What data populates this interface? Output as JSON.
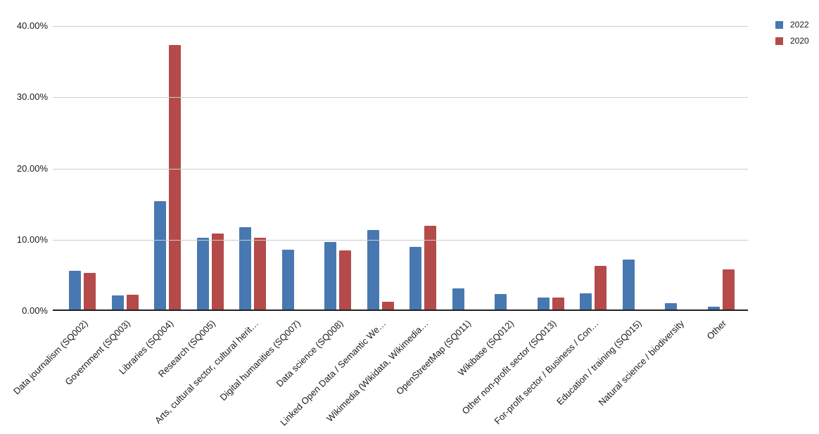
{
  "chart_data": {
    "type": "bar",
    "categories": [
      "Data journalism (SQ002)",
      "Government (SQ003)",
      "Libraries (SQ004)",
      "Research (SQ005)",
      "Arts, cultural sector, cultural herit…",
      "Digital humanities (SQ007)",
      "Data science (SQ008)",
      "Linked Open Data / Semantic We…",
      "Wikimedia (Wikidata, Wikimedia…",
      "OpenStreetMap (SQ011)",
      "Wikibase (SQ012)",
      "Other non-profit sector (SQ013)",
      "For-profit sector / Business / Con…",
      "Education / training (SQ015)",
      "Natural science / biodiversity",
      "Other"
    ],
    "series": [
      {
        "name": "2022",
        "color": "#4878B1",
        "values": [
          5.4,
          2.0,
          15.2,
          10.1,
          11.6,
          8.4,
          9.5,
          11.2,
          8.8,
          3.0,
          2.2,
          1.7,
          2.3,
          7.0,
          0.9,
          0.4
        ]
      },
      {
        "name": "2020",
        "color": "#B54A4A",
        "values": [
          5.1,
          2.1,
          37.1,
          10.7,
          10.1,
          0,
          8.3,
          1.1,
          11.8,
          0,
          0,
          1.7,
          6.1,
          0,
          0,
          5.6
        ]
      }
    ],
    "ylim": [
      0,
      40
    ],
    "ytick_labels": [
      "0.00%",
      "10.00%",
      "20.00%",
      "30.00%",
      "40.00%"
    ],
    "grid": true,
    "legend_position": "top-right",
    "value_format": "percent",
    "colors": {
      "gridline": "#cccccc",
      "axis_line": "#212121",
      "label_text": "#1a1a1a",
      "background": "#ffffff"
    }
  }
}
